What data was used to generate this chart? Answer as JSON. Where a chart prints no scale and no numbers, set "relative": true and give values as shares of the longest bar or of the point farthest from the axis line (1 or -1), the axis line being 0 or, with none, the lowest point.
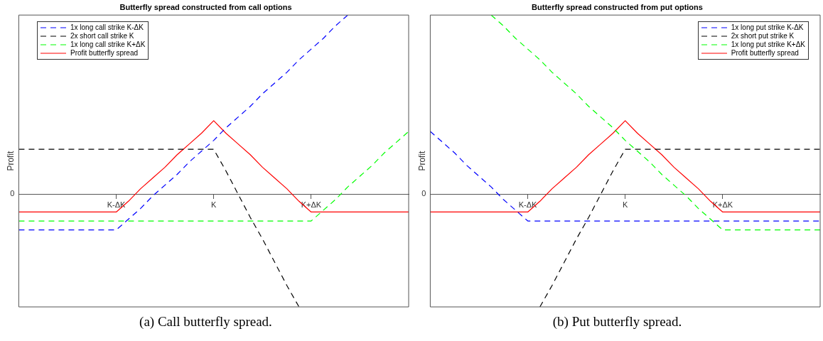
{
  "chart_data": [
    {
      "type": "line",
      "title": "Butterfly spread constructed from call options",
      "ylabel": "Profit",
      "relative": true,
      "categories": [
        null,
        null,
        null,
        null,
        null,
        null,
        null,
        null,
        "K-ΔK",
        null,
        null,
        null,
        null,
        null,
        null,
        null,
        "K",
        null,
        null,
        null,
        null,
        null,
        null,
        null,
        "K+ΔK",
        null,
        null,
        null,
        null,
        null,
        null,
        null,
        null
      ],
      "legend": "top left",
      "grid": false,
      "annotations": [
        "0",
        "(a) Call butterfly spread."
      ],
      "series": [
        {
          "name": "1x long call strike K-ΔK",
          "color": "#0000ff",
          "line_style": "dashed",
          "values": [
            -0.2,
            -0.2,
            -0.2,
            -0.2,
            -0.2,
            -0.2,
            -0.2,
            -0.2,
            -0.2,
            -0.14,
            -0.08,
            -0.01,
            0.05,
            0.11,
            0.18,
            0.24,
            0.3,
            0.37,
            0.43,
            0.49,
            0.56,
            0.62,
            0.68,
            0.75,
            0.81,
            0.87,
            0.94,
            1,
            null,
            null,
            null,
            null,
            null
          ]
        },
        {
          "name": "2x short call strike K",
          "color": "#000000",
          "line_style": "dashed",
          "values": [
            0.25,
            0.25,
            0.25,
            0.25,
            0.25,
            0.25,
            0.25,
            0.25,
            0.25,
            0.25,
            0.25,
            0.25,
            0.25,
            0.25,
            0.25,
            0.25,
            0.25,
            0.13,
            0,
            -0.13,
            -0.25,
            -0.38,
            -0.51,
            -0.63,
            null,
            null,
            null,
            null,
            null,
            null,
            null,
            null,
            null
          ]
        },
        {
          "name": "1x long call strike K+ΔK",
          "color": "#00ff00",
          "line_style": "dashed",
          "values": [
            -0.15,
            -0.15,
            -0.15,
            -0.15,
            -0.15,
            -0.15,
            -0.15,
            -0.15,
            -0.15,
            -0.15,
            -0.15,
            -0.15,
            -0.15,
            -0.15,
            -0.15,
            -0.15,
            -0.15,
            -0.15,
            -0.15,
            -0.15,
            -0.15,
            -0.15,
            -0.15,
            -0.15,
            -0.15,
            -0.09,
            -0.03,
            0.04,
            0.1,
            0.16,
            0.23,
            0.29,
            0.35
          ]
        },
        {
          "name": "Profit butterfly spread",
          "color": "#ff0000",
          "line_style": "solid",
          "values": [
            -0.1,
            -0.1,
            -0.1,
            -0.1,
            -0.1,
            -0.1,
            -0.1,
            -0.1,
            -0.1,
            -0.04,
            0.03,
            0.09,
            0.15,
            0.22,
            0.28,
            0.34,
            0.41,
            0.34,
            0.28,
            0.22,
            0.15,
            0.09,
            0.03,
            -0.04,
            -0.1,
            -0.1,
            -0.1,
            -0.1,
            -0.1,
            -0.1,
            -0.1,
            -0.1,
            -0.1
          ]
        }
      ]
    },
    {
      "type": "line",
      "title": "Butterfly spread constructed from put options",
      "ylabel": "Profit",
      "relative": true,
      "categories": [
        null,
        null,
        null,
        null,
        null,
        null,
        null,
        null,
        "K-ΔK",
        null,
        null,
        null,
        null,
        null,
        null,
        null,
        "K",
        null,
        null,
        null,
        null,
        null,
        null,
        null,
        "K+ΔK",
        null,
        null,
        null,
        null,
        null,
        null,
        null,
        null
      ],
      "legend": "top right",
      "grid": false,
      "annotations": [
        "0",
        "(b) Put butterfly spread."
      ],
      "series": [
        {
          "name": "1x long put strike K-ΔK",
          "color": "#0000ff",
          "line_style": "dashed",
          "values": [
            0.35,
            0.29,
            0.23,
            0.16,
            0.1,
            0.04,
            -0.03,
            -0.09,
            -0.15,
            -0.15,
            -0.15,
            -0.15,
            -0.15,
            -0.15,
            -0.15,
            -0.15,
            -0.15,
            -0.15,
            -0.15,
            -0.15,
            -0.15,
            -0.15,
            -0.15,
            -0.15,
            -0.15,
            -0.15,
            -0.15,
            -0.15,
            -0.15,
            -0.15,
            -0.15,
            -0.15,
            -0.15
          ]
        },
        {
          "name": "2x short put strike K",
          "color": "#000000",
          "line_style": "dashed",
          "values": [
            null,
            null,
            null,
            null,
            null,
            null,
            null,
            null,
            null,
            -0.63,
            -0.51,
            -0.38,
            -0.25,
            -0.13,
            0,
            0.13,
            0.25,
            0.25,
            0.25,
            0.25,
            0.25,
            0.25,
            0.25,
            0.25,
            0.25,
            0.25,
            0.25,
            0.25,
            0.25,
            0.25,
            0.25,
            0.25,
            0.25
          ]
        },
        {
          "name": "1x long put strike K+ΔK",
          "color": "#00ff00",
          "line_style": "dashed",
          "values": [
            null,
            null,
            null,
            null,
            null,
            1,
            0.94,
            0.87,
            0.81,
            0.75,
            0.68,
            0.62,
            0.56,
            0.49,
            0.43,
            0.37,
            0.3,
            0.24,
            0.18,
            0.11,
            0.05,
            -0.01,
            -0.08,
            -0.14,
            -0.2,
            -0.2,
            -0.2,
            -0.2,
            -0.2,
            -0.2,
            -0.2,
            -0.2,
            -0.2
          ]
        },
        {
          "name": "Profit butterfly spread",
          "color": "#ff0000",
          "line_style": "solid",
          "values": [
            -0.1,
            -0.1,
            -0.1,
            -0.1,
            -0.1,
            -0.1,
            -0.1,
            -0.1,
            -0.1,
            -0.04,
            0.03,
            0.09,
            0.15,
            0.22,
            0.28,
            0.34,
            0.41,
            0.34,
            0.28,
            0.22,
            0.15,
            0.09,
            0.03,
            -0.04,
            -0.1,
            -0.1,
            -0.1,
            -0.1,
            -0.1,
            -0.1,
            -0.1,
            -0.1,
            -0.1
          ]
        }
      ]
    }
  ]
}
